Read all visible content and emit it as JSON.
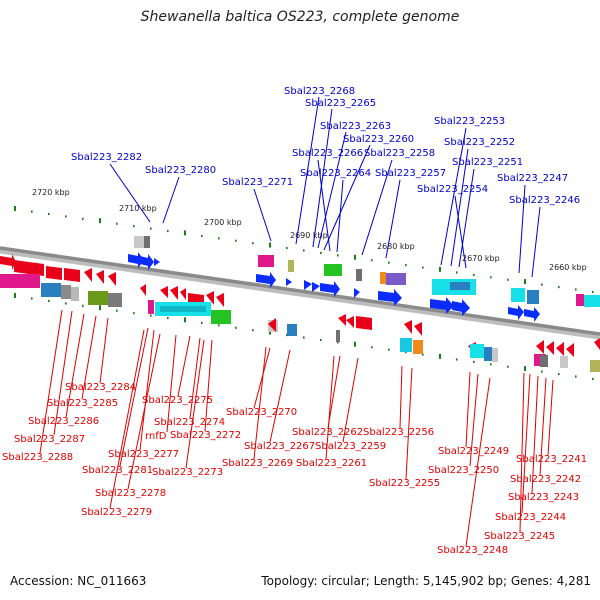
{
  "title": "Shewanella baltica OS223, complete genome",
  "footer": {
    "accession": "Accession: NC_011663",
    "summary": "Topology: circular; Length: 5,145,902 bp; Genes: 4,281"
  },
  "colors": {
    "top_label": "#0000cc",
    "bottom_label": "#dd0000",
    "backbone": "#888888",
    "tick": "#1a7f1a"
  },
  "axis": {
    "ticks": [
      "2720 kbp",
      "2710 kbp",
      "2700 kbp",
      "2690 kbp",
      "2680 kbp",
      "2670 kbp",
      "2660 kbp"
    ]
  },
  "top_labels": [
    "Sbal223_2268",
    "Sbal223_2265",
    "Sbal223_2263",
    "Sbal223_2260",
    "Sbal223_2266",
    "Sbal223_2258",
    "Sbal223_2282",
    "Sbal223_2280",
    "Sbal223_2264",
    "Sbal223_2271",
    "Sbal223_2257",
    "Sbal223_2253",
    "Sbal223_2252",
    "Sbal223_2251",
    "Sbal223_2247",
    "Sbal223_2254",
    "Sbal223_2246"
  ],
  "bottom_labels": [
    "Sbal223_2284",
    "Sbal223_2285",
    "Sbal223_2286",
    "Sbal223_2287",
    "Sbal223_2288",
    "Sbal223_2275",
    "Sbal223_2274",
    "rnfD",
    "Sbal223_2272",
    "Sbal223_2277",
    "Sbal223_2281",
    "Sbal223_2273",
    "Sbal223_2278",
    "Sbal223_2279",
    "Sbal223_2270",
    "Sbal223_2267",
    "Sbal223_2269",
    "Sbal223_2262",
    "Sbal223_2259",
    "Sbal223_2261",
    "Sbal223_2256",
    "Sbal223_2255",
    "Sbal223_2249",
    "Sbal223_2250",
    "Sbal223_2241",
    "Sbal223_2242",
    "Sbal223_2243",
    "Sbal223_2244",
    "Sbal223_2245",
    "Sbal223_2248"
  ]
}
